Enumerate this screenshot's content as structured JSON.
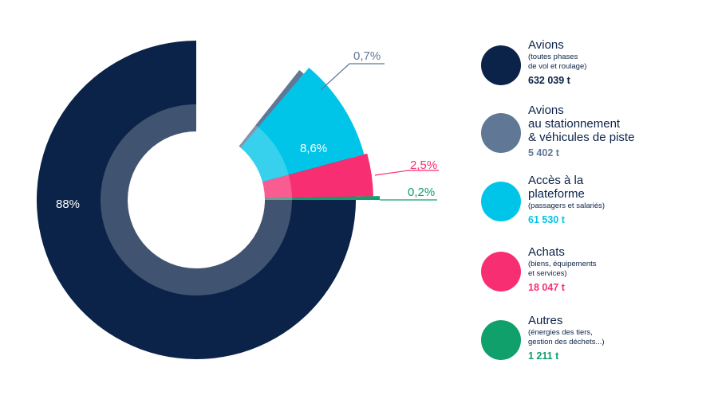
{
  "chart_data": {
    "type": "pie",
    "slices": [
      {
        "label": "Avions",
        "pct_label": "88%",
        "value": 88,
        "color": "#0b2348",
        "label_color": "#ffffff"
      },
      {
        "label": "Avions au stationnement & véhicules de piste",
        "pct_label": "0,7%",
        "value": 0.7,
        "color": "#607896",
        "label_color": "#607896"
      },
      {
        "label": "Accès à la plateforme",
        "pct_label": "8,6%",
        "value": 8.6,
        "color": "#00c5e8",
        "label_color": "#ffffff"
      },
      {
        "label": "Achats",
        "pct_label": "2,5%",
        "value": 2.5,
        "color": "#f72f72",
        "label_color": "#f72f72"
      },
      {
        "label": "Autres",
        "pct_label": "0,2%",
        "value": 0.2,
        "color": "#0fa06b",
        "label_color": "#0fa06b"
      }
    ]
  },
  "legend": [
    {
      "title": "Avions",
      "subtitle": "(toutes phases\nde vol et roulage)",
      "value": "632 039 t",
      "color": "#0b2348"
    },
    {
      "title": "Avions\nau stationnement\n& véhicules de piste",
      "subtitle": "",
      "value": "5 402 t",
      "color": "#607896"
    },
    {
      "title": "Accès à la\nplateforme",
      "subtitle": "(passagers et salariés)",
      "value": "61 530 t",
      "color": "#00c5e8"
    },
    {
      "title": "Achats",
      "subtitle": "(biens, équipements\net services)",
      "value": "18 047 t",
      "color": "#f72f72"
    },
    {
      "title": "Autres",
      "subtitle": "(énergies des tiers,\ngestion des déchets...)",
      "value": "1 211 t",
      "color": "#0fa06b"
    }
  ]
}
